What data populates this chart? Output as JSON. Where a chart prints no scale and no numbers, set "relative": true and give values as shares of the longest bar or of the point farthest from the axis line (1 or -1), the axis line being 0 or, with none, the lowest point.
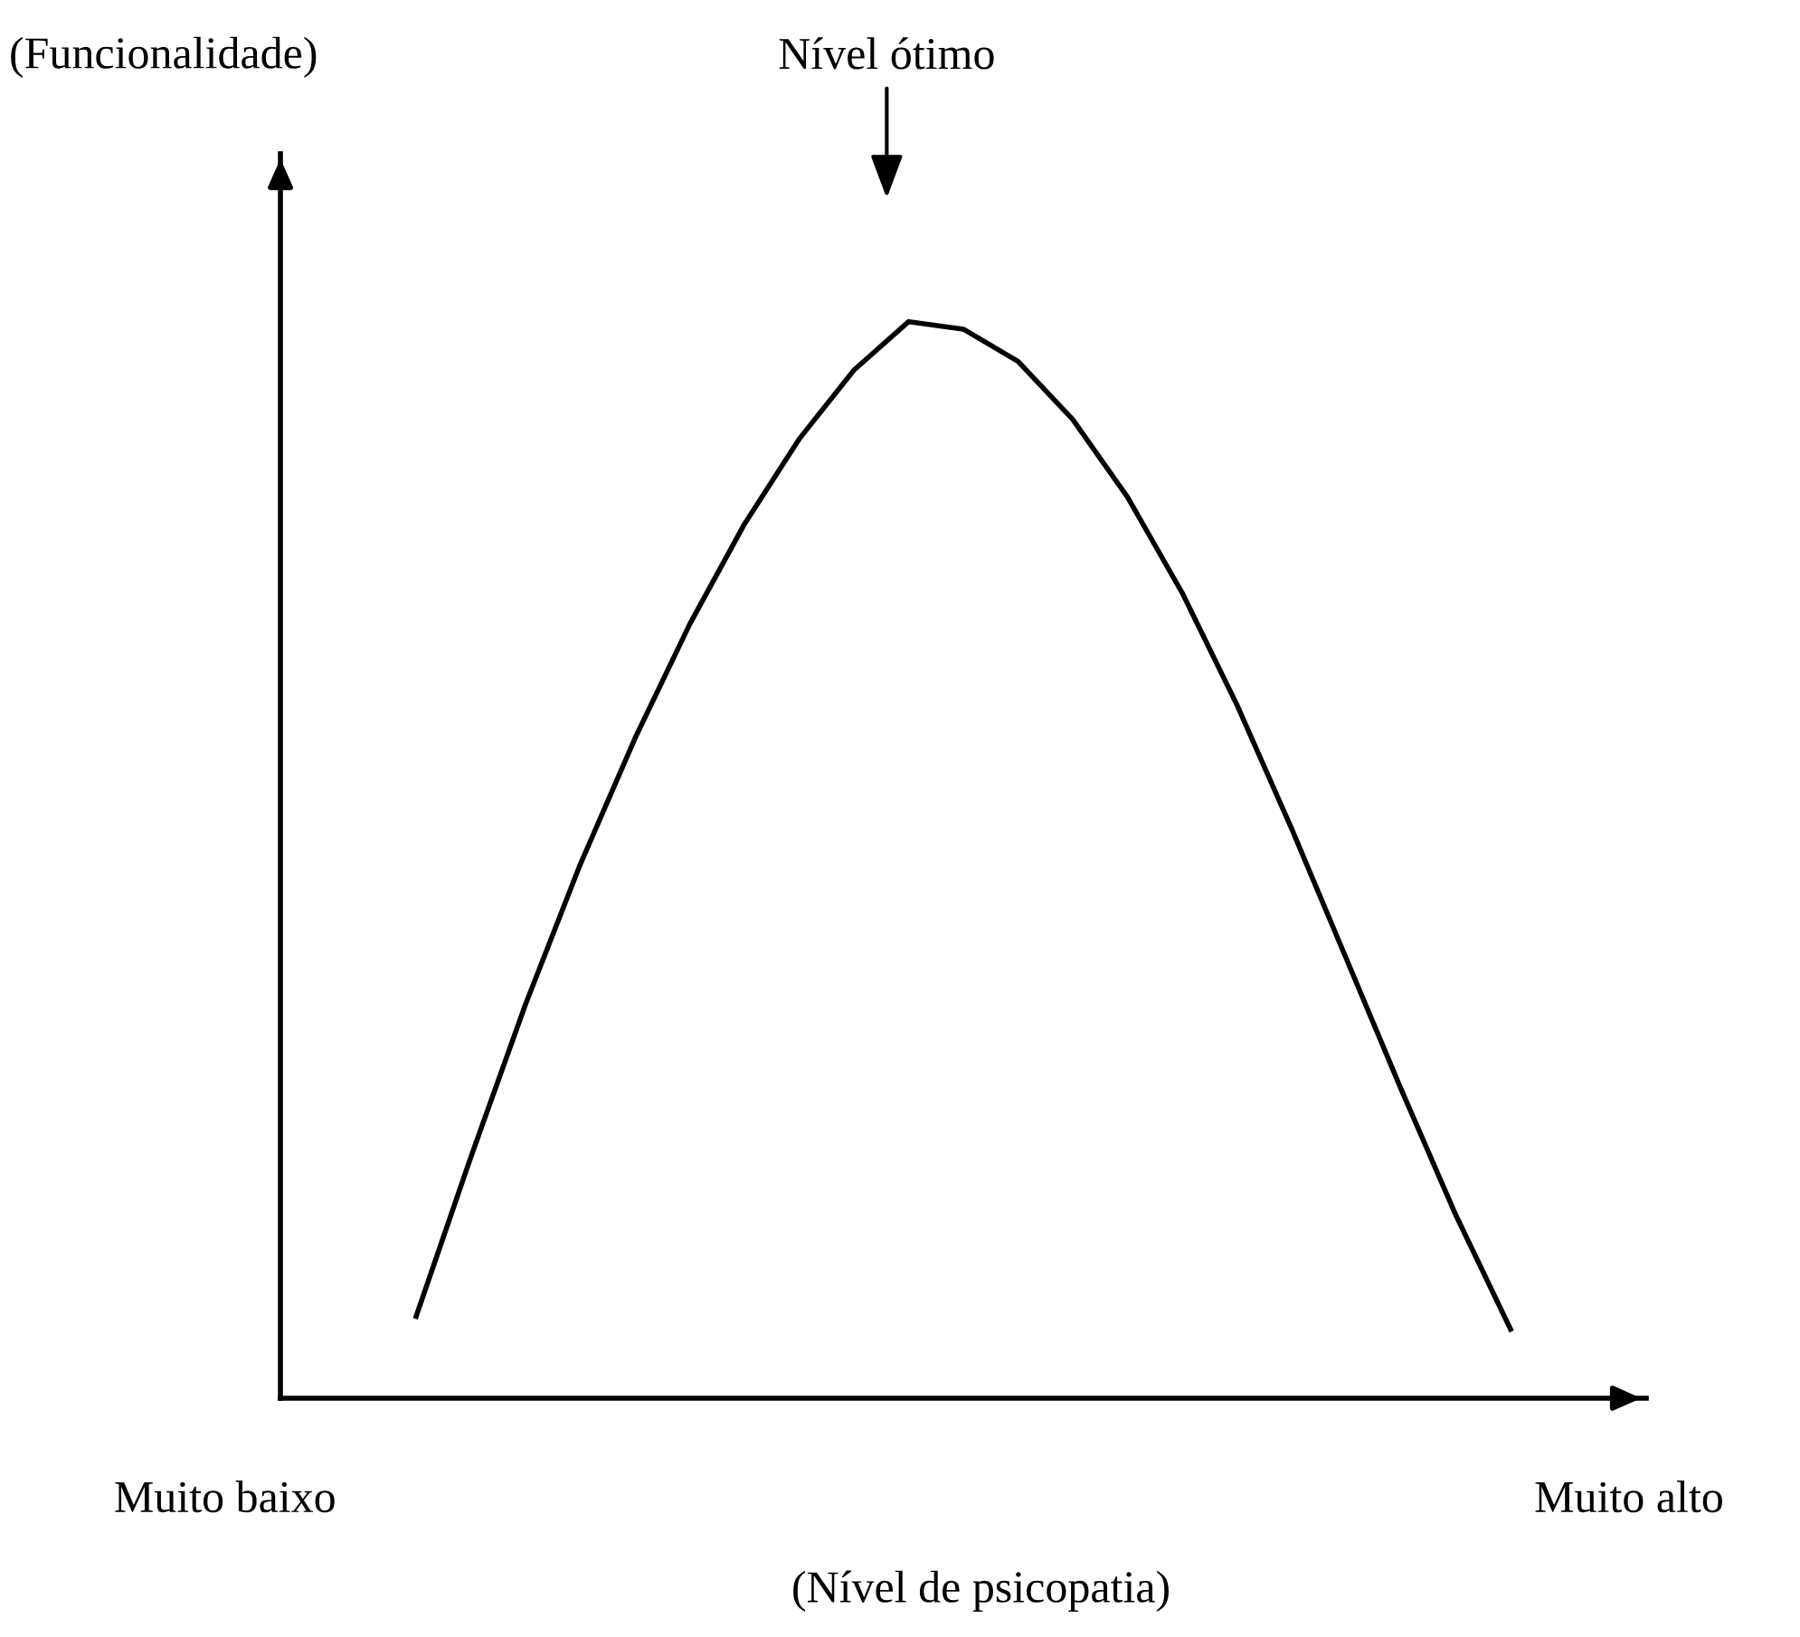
{
  "chart_data": {
    "type": "line",
    "relative": true,
    "categories": [
      null,
      null,
      null,
      null,
      null,
      null,
      null,
      null,
      null,
      null,
      null,
      null,
      null,
      null,
      null,
      null,
      null,
      null,
      null,
      null,
      null
    ],
    "series": [
      {
        "color": "#000000",
        "values": [
          0.076,
          0.224,
          0.366,
          0.496,
          0.613,
          0.719,
          0.812,
          0.891,
          0.955,
          1.0,
          0.993,
          0.963,
          0.909,
          0.837,
          0.748,
          0.644,
          0.529,
          0.408,
          0.287,
          0.17,
          0.064
        ]
      }
    ],
    "xlabel": "(Nível de psicopatia)",
    "annotations": [
      "Nível ótimo",
      "Muito baixo",
      "Muito alto",
      "(Funcionalidade)"
    ],
    "grid": false,
    "marker": "none",
    "line_style": "solid"
  }
}
